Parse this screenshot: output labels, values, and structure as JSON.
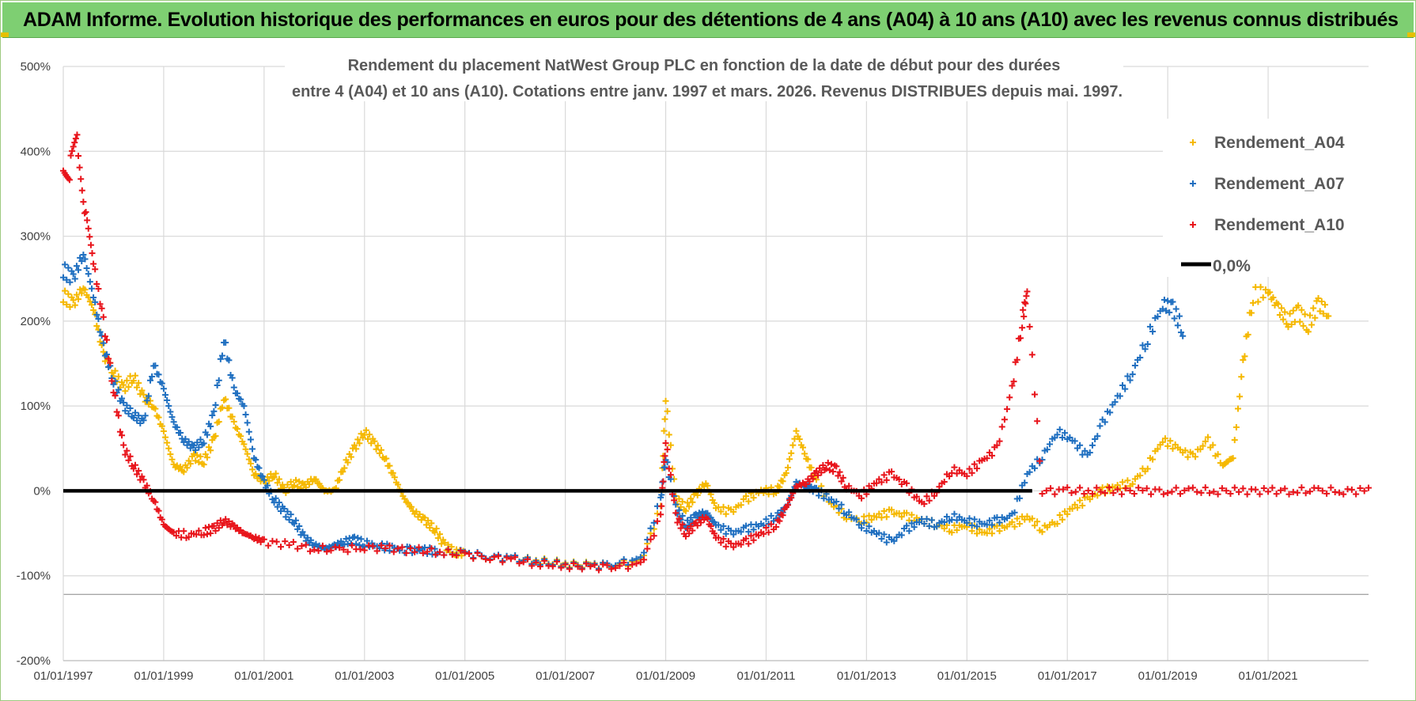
{
  "header": {
    "title": "ADAM Informe. Evolution historique des performances en euros pour des détentions de 4 ans (A04) à 10 ans (A10) avec les revenus connus distribués"
  },
  "colors": {
    "banner": "#7ecf72",
    "a04": "#f5b800",
    "a07": "#1f6fc0",
    "a10": "#e8141b",
    "zero": "#000000",
    "grid": "#d9d9d9"
  },
  "chart_data": {
    "type": "scatter",
    "title_lines": [
      "Rendement du placement NatWest Group PLC en fonction de la date de début pour des durées",
      "entre 4 (A04) et 10 ans (A10).  Cotations entre janv. 1997 et mars. 2026.  Revenus DISTRIBUES depuis mai. 1997."
    ],
    "xlabel": "",
    "ylabel": "",
    "ylim": [
      -200,
      500
    ],
    "xlim": [
      1997.0,
      2023.0
    ],
    "y_ticks": [
      {
        "v": 500,
        "label": "500%"
      },
      {
        "v": 400,
        "label": "400%"
      },
      {
        "v": 300,
        "label": "300%"
      },
      {
        "v": 200,
        "label": "200%"
      },
      {
        "v": 100,
        "label": "100%"
      },
      {
        "v": 0,
        "label": "0%"
      },
      {
        "v": -100,
        "label": "-100%"
      },
      {
        "v": -200,
        "label": "-200%"
      }
    ],
    "x_ticks": [
      {
        "v": 1997,
        "label": "01/01/1997"
      },
      {
        "v": 1999,
        "label": "01/01/1999"
      },
      {
        "v": 2001,
        "label": "01/01/2001"
      },
      {
        "v": 2003,
        "label": "01/01/2003"
      },
      {
        "v": 2005,
        "label": "01/01/2005"
      },
      {
        "v": 2007,
        "label": "01/01/2007"
      },
      {
        "v": 2009,
        "label": "01/01/2009"
      },
      {
        "v": 2011,
        "label": "01/01/2011"
      },
      {
        "v": 2013,
        "label": "01/01/2013"
      },
      {
        "v": 2015,
        "label": "01/01/2015"
      },
      {
        "v": 2017,
        "label": "01/01/2017"
      },
      {
        "v": 2019,
        "label": "01/01/2019"
      },
      {
        "v": 2021,
        "label": "01/01/2021"
      }
    ],
    "zero_line": {
      "name": "0,0%",
      "y": 0
    },
    "series": [
      {
        "name": "Rendement_A04",
        "color": "#f5b800",
        "points": [
          [
            1997.0,
            230
          ],
          [
            1997.2,
            220
          ],
          [
            1997.4,
            240
          ],
          [
            1997.6,
            215
          ],
          [
            1997.8,
            160
          ],
          [
            1998.0,
            140
          ],
          [
            1998.2,
            120
          ],
          [
            1998.4,
            135
          ],
          [
            1998.6,
            110
          ],
          [
            1998.8,
            100
          ],
          [
            1999.0,
            70
          ],
          [
            1999.2,
            30
          ],
          [
            1999.4,
            25
          ],
          [
            1999.6,
            40
          ],
          [
            1999.8,
            35
          ],
          [
            2000.0,
            60
          ],
          [
            2000.2,
            110
          ],
          [
            2000.4,
            80
          ],
          [
            2000.6,
            55
          ],
          [
            2000.8,
            20
          ],
          [
            2001.0,
            10
          ],
          [
            2001.2,
            20
          ],
          [
            2001.4,
            0
          ],
          [
            2001.6,
            10
          ],
          [
            2001.8,
            5
          ],
          [
            2002.0,
            15
          ],
          [
            2002.2,
            0
          ],
          [
            2002.4,
            0
          ],
          [
            2002.6,
            30
          ],
          [
            2002.8,
            50
          ],
          [
            2003.0,
            70
          ],
          [
            2003.2,
            55
          ],
          [
            2003.4,
            40
          ],
          [
            2003.6,
            15
          ],
          [
            2003.8,
            -10
          ],
          [
            2004.0,
            -25
          ],
          [
            2004.2,
            -35
          ],
          [
            2004.4,
            -45
          ],
          [
            2004.6,
            -65
          ],
          [
            2004.8,
            -72
          ],
          [
            2005.0,
            -74
          ],
          [
            2005.5,
            -78
          ],
          [
            2006.0,
            -80
          ],
          [
            2006.5,
            -83
          ],
          [
            2007.0,
            -86
          ],
          [
            2007.5,
            -88
          ],
          [
            2008.0,
            -86
          ],
          [
            2008.5,
            -84
          ],
          [
            2008.9,
            -20
          ],
          [
            2009.0,
            110
          ],
          [
            2009.2,
            -10
          ],
          [
            2009.4,
            -20
          ],
          [
            2009.6,
            -5
          ],
          [
            2009.8,
            10
          ],
          [
            2010.0,
            -20
          ],
          [
            2010.3,
            -25
          ],
          [
            2010.6,
            -10
          ],
          [
            2010.9,
            0
          ],
          [
            2011.2,
            0
          ],
          [
            2011.4,
            20
          ],
          [
            2011.6,
            70
          ],
          [
            2011.8,
            40
          ],
          [
            2012.0,
            10
          ],
          [
            2012.3,
            -15
          ],
          [
            2012.6,
            -30
          ],
          [
            2012.9,
            -35
          ],
          [
            2013.2,
            -30
          ],
          [
            2013.5,
            -25
          ],
          [
            2013.8,
            -30
          ],
          [
            2014.1,
            -35
          ],
          [
            2014.4,
            -40
          ],
          [
            2014.7,
            -45
          ],
          [
            2015.0,
            -40
          ],
          [
            2015.3,
            -50
          ],
          [
            2015.6,
            -45
          ],
          [
            2015.9,
            -40
          ],
          [
            2016.2,
            -30
          ],
          [
            2016.5,
            -45
          ],
          [
            2016.8,
            -35
          ],
          [
            2017.1,
            -20
          ],
          [
            2017.4,
            -10
          ],
          [
            2017.7,
            0
          ],
          [
            2018.0,
            5
          ],
          [
            2018.3,
            10
          ],
          [
            2018.6,
            30
          ],
          [
            2018.9,
            60
          ],
          [
            2019.2,
            50
          ],
          [
            2019.5,
            40
          ],
          [
            2019.8,
            60
          ],
          [
            2020.1,
            30
          ],
          [
            2020.3,
            40
          ],
          [
            2020.5,
            150
          ],
          [
            2020.7,
            230
          ],
          [
            2021.0,
            235
          ],
          [
            2021.2,
            215
          ],
          [
            2021.4,
            200
          ],
          [
            2021.6,
            210
          ],
          [
            2021.8,
            195
          ],
          [
            2022.0,
            220
          ],
          [
            2022.2,
            210
          ]
        ]
      },
      {
        "name": "Rendement_A07",
        "color": "#1f6fc0",
        "points": [
          [
            1997.0,
            260
          ],
          [
            1997.2,
            250
          ],
          [
            1997.4,
            280
          ],
          [
            1997.6,
            230
          ],
          [
            1997.8,
            170
          ],
          [
            1998.0,
            130
          ],
          [
            1998.2,
            100
          ],
          [
            1998.4,
            90
          ],
          [
            1998.6,
            80
          ],
          [
            1998.8,
            150
          ],
          [
            1999.0,
            120
          ],
          [
            1999.2,
            80
          ],
          [
            1999.4,
            60
          ],
          [
            1999.6,
            50
          ],
          [
            1999.8,
            60
          ],
          [
            2000.0,
            90
          ],
          [
            2000.2,
            180
          ],
          [
            2000.4,
            120
          ],
          [
            2000.6,
            100
          ],
          [
            2000.8,
            40
          ],
          [
            2001.0,
            10
          ],
          [
            2001.2,
            -10
          ],
          [
            2001.4,
            -25
          ],
          [
            2001.6,
            -35
          ],
          [
            2001.8,
            -55
          ],
          [
            2002.0,
            -63
          ],
          [
            2002.2,
            -68
          ],
          [
            2002.4,
            -65
          ],
          [
            2002.6,
            -60
          ],
          [
            2002.8,
            -58
          ],
          [
            2003.0,
            -62
          ],
          [
            2003.3,
            -65
          ],
          [
            2003.6,
            -68
          ],
          [
            2003.9,
            -70
          ],
          [
            2004.2,
            -70
          ],
          [
            2004.5,
            -72
          ],
          [
            2005.0,
            -74
          ],
          [
            2005.5,
            -77
          ],
          [
            2006.0,
            -80
          ],
          [
            2006.5,
            -84
          ],
          [
            2007.0,
            -87
          ],
          [
            2007.5,
            -89
          ],
          [
            2008.0,
            -85
          ],
          [
            2008.5,
            -82
          ],
          [
            2008.9,
            -10
          ],
          [
            2009.0,
            40
          ],
          [
            2009.2,
            -20
          ],
          [
            2009.4,
            -40
          ],
          [
            2009.6,
            -30
          ],
          [
            2009.8,
            -25
          ],
          [
            2010.0,
            -40
          ],
          [
            2010.3,
            -50
          ],
          [
            2010.6,
            -45
          ],
          [
            2010.9,
            -40
          ],
          [
            2011.2,
            -30
          ],
          [
            2011.4,
            -20
          ],
          [
            2011.6,
            10
          ],
          [
            2011.8,
            5
          ],
          [
            2012.0,
            0
          ],
          [
            2012.3,
            -10
          ],
          [
            2012.6,
            -25
          ],
          [
            2012.9,
            -40
          ],
          [
            2013.2,
            -50
          ],
          [
            2013.5,
            -60
          ],
          [
            2013.8,
            -45
          ],
          [
            2014.1,
            -35
          ],
          [
            2014.4,
            -40
          ],
          [
            2014.7,
            -30
          ],
          [
            2015.0,
            -35
          ],
          [
            2015.3,
            -40
          ],
          [
            2015.6,
            -35
          ],
          [
            2015.9,
            -30
          ],
          [
            2016.2,
            20
          ],
          [
            2016.5,
            40
          ],
          [
            2016.8,
            70
          ],
          [
            2017.1,
            60
          ],
          [
            2017.4,
            40
          ],
          [
            2017.7,
            80
          ],
          [
            2018.0,
            110
          ],
          [
            2018.3,
            140
          ],
          [
            2018.6,
            180
          ],
          [
            2018.9,
            220
          ],
          [
            2019.1,
            215
          ],
          [
            2019.3,
            190
          ]
        ]
      },
      {
        "name": "Rendement_A10",
        "color": "#e8141b",
        "points": [
          [
            1997.0,
            390
          ],
          [
            1997.15,
            380
          ],
          [
            1997.3,
            410
          ],
          [
            1997.45,
            320
          ],
          [
            1997.6,
            270
          ],
          [
            1997.8,
            200
          ],
          [
            1998.0,
            120
          ],
          [
            1998.2,
            50
          ],
          [
            1998.4,
            30
          ],
          [
            1998.6,
            10
          ],
          [
            1998.8,
            -10
          ],
          [
            1999.0,
            -40
          ],
          [
            1999.2,
            -50
          ],
          [
            1999.5,
            -52
          ],
          [
            1999.8,
            -48
          ],
          [
            2000.0,
            -45
          ],
          [
            2000.2,
            -35
          ],
          [
            2000.4,
            -42
          ],
          [
            2000.6,
            -50
          ],
          [
            2000.8,
            -55
          ],
          [
            2001.0,
            -60
          ],
          [
            2001.5,
            -63
          ],
          [
            2002.0,
            -68
          ],
          [
            2002.5,
            -70
          ],
          [
            2003.0,
            -66
          ],
          [
            2003.5,
            -68
          ],
          [
            2004.0,
            -70
          ],
          [
            2004.5,
            -72
          ],
          [
            2005.0,
            -75
          ],
          [
            2005.5,
            -78
          ],
          [
            2006.0,
            -82
          ],
          [
            2006.5,
            -86
          ],
          [
            2007.0,
            -88
          ],
          [
            2007.5,
            -90
          ],
          [
            2008.0,
            -88
          ],
          [
            2008.5,
            -88
          ],
          [
            2008.9,
            -30
          ],
          [
            2009.0,
            60
          ],
          [
            2009.2,
            -30
          ],
          [
            2009.4,
            -50
          ],
          [
            2009.6,
            -40
          ],
          [
            2009.8,
            -30
          ],
          [
            2010.0,
            -55
          ],
          [
            2010.3,
            -65
          ],
          [
            2010.6,
            -60
          ],
          [
            2010.9,
            -50
          ],
          [
            2011.2,
            -40
          ],
          [
            2011.4,
            -20
          ],
          [
            2011.6,
            5
          ],
          [
            2011.8,
            10
          ],
          [
            2012.0,
            20
          ],
          [
            2012.2,
            30
          ],
          [
            2012.4,
            25
          ],
          [
            2012.6,
            5
          ],
          [
            2012.9,
            -5
          ],
          [
            2013.2,
            10
          ],
          [
            2013.5,
            20
          ],
          [
            2013.8,
            5
          ],
          [
            2014.1,
            -15
          ],
          [
            2014.4,
            0
          ],
          [
            2014.7,
            25
          ],
          [
            2015.0,
            20
          ],
          [
            2015.3,
            35
          ],
          [
            2015.6,
            50
          ],
          [
            2015.9,
            120
          ],
          [
            2016.1,
            200
          ],
          [
            2016.2,
            235
          ],
          [
            2016.5,
            0
          ],
          [
            2017.0,
            0
          ],
          [
            2017.5,
            0
          ],
          [
            2018.0,
            0
          ],
          [
            2018.5,
            0
          ],
          [
            2019.0,
            0
          ],
          [
            2019.5,
            0
          ],
          [
            2020.0,
            0
          ],
          [
            2020.5,
            0
          ],
          [
            2021.0,
            0
          ],
          [
            2021.5,
            0
          ],
          [
            2022.0,
            0
          ],
          [
            2022.5,
            0
          ],
          [
            2023.0,
            0
          ]
        ]
      }
    ]
  }
}
